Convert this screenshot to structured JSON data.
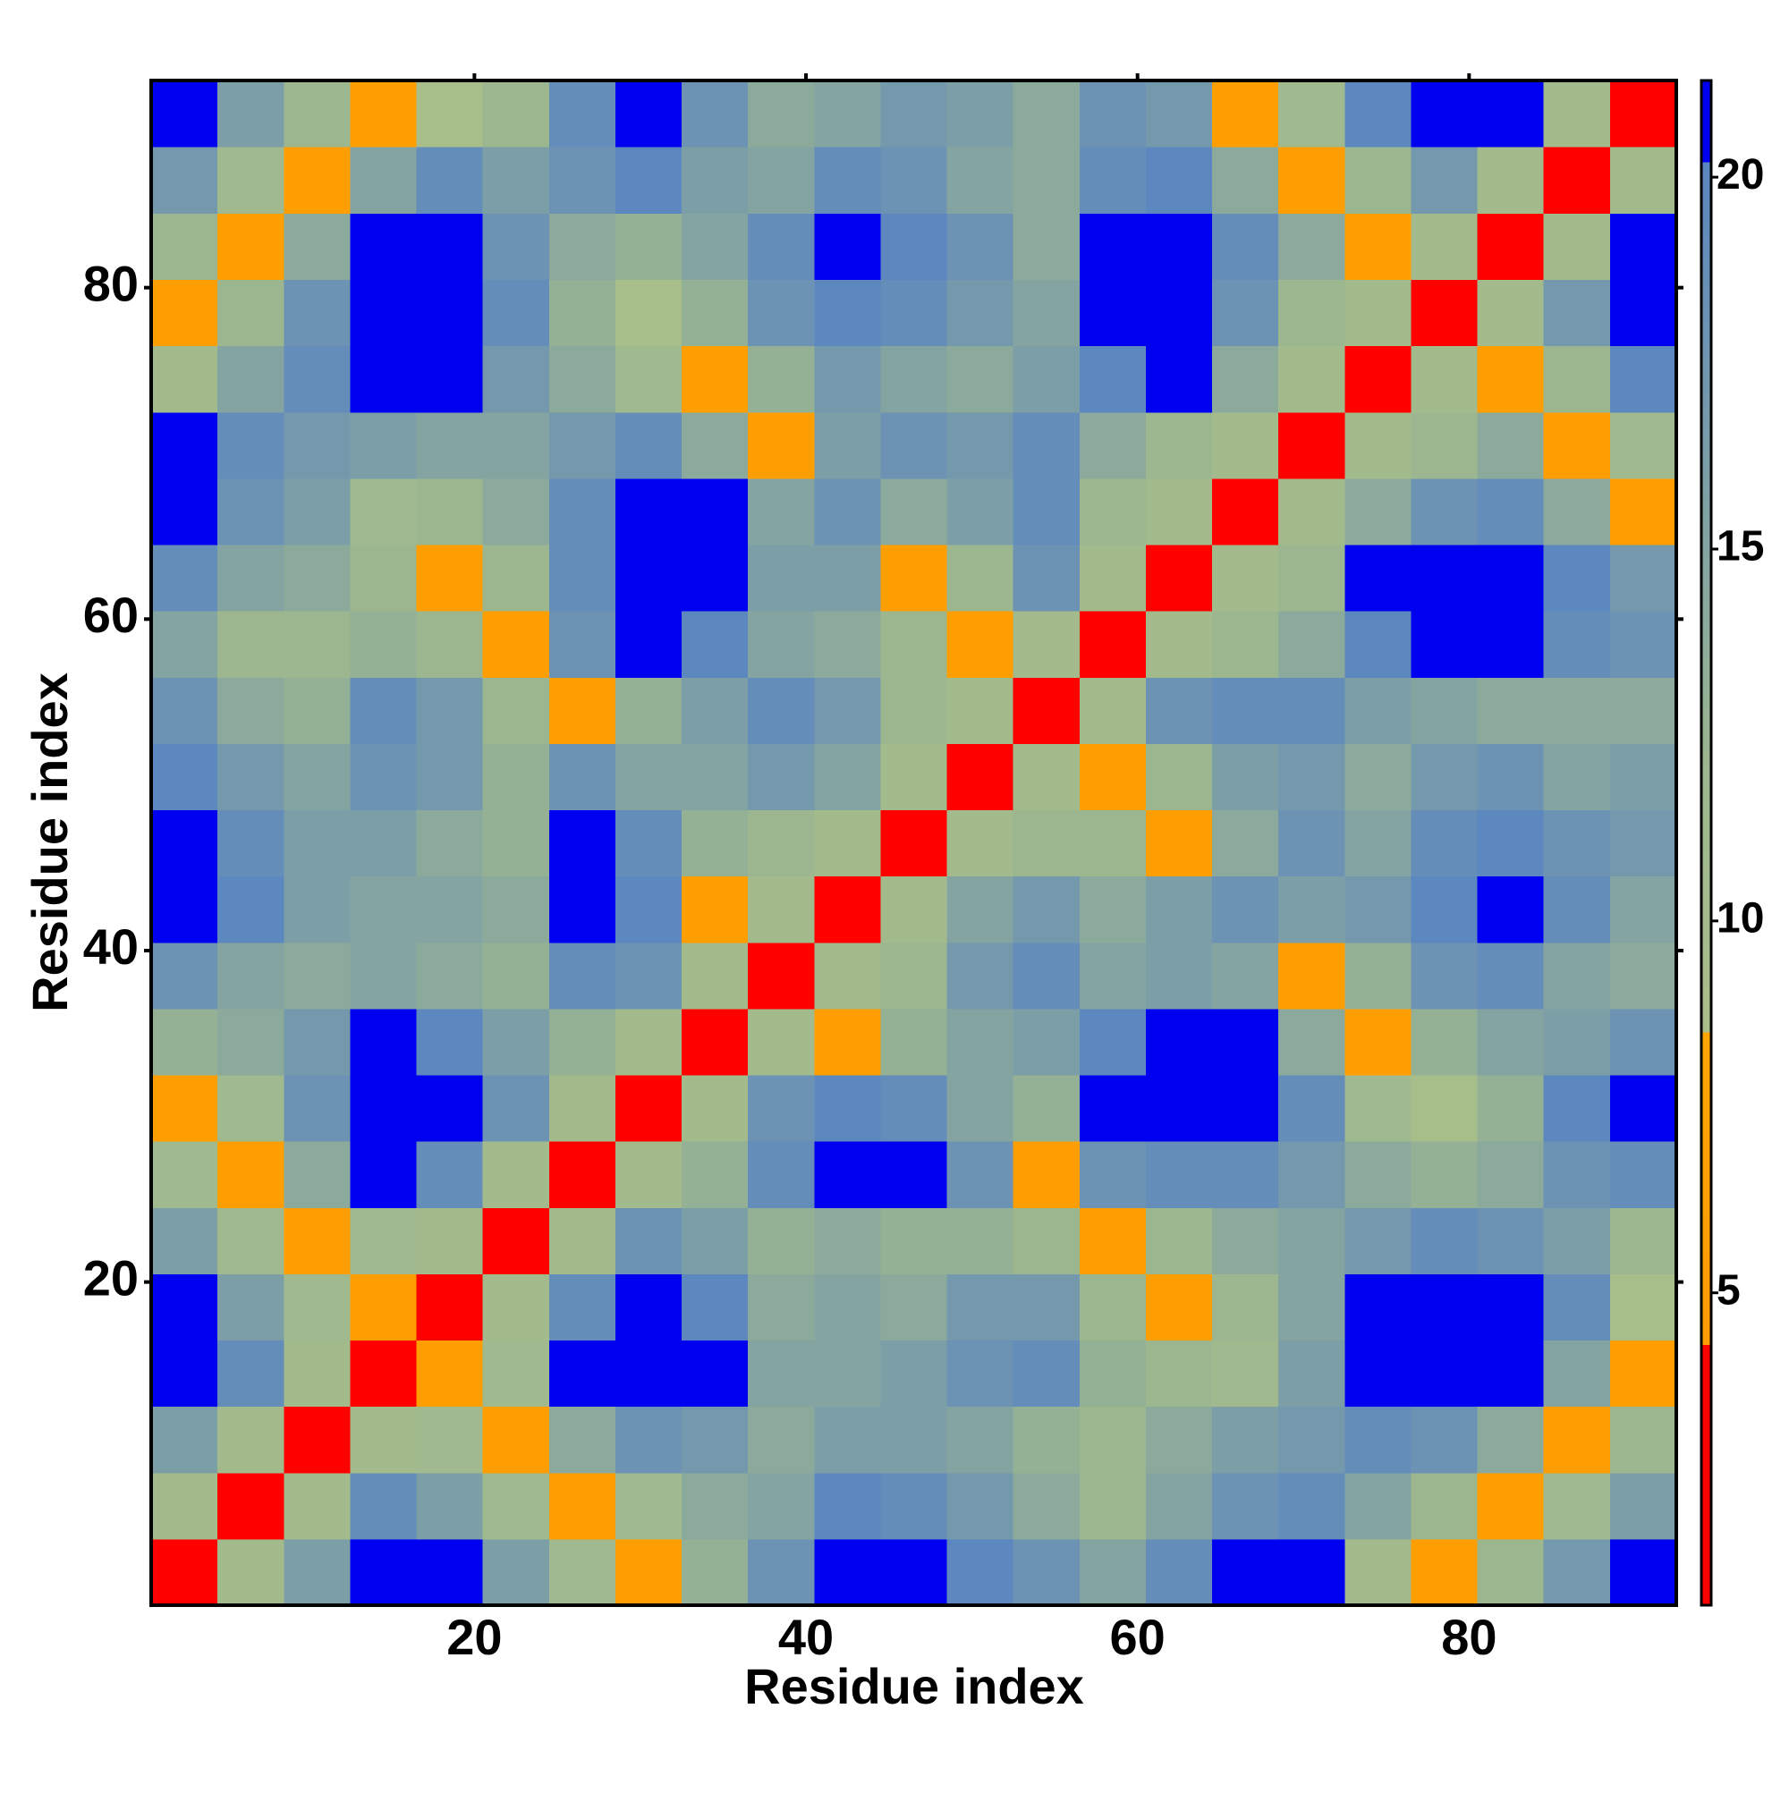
{
  "chart_data": {
    "type": "heatmap",
    "xlabel": "Residue index",
    "ylabel": "Residue index",
    "x": [
      2.5,
      6.5,
      10.5,
      14.5,
      18.5,
      22.5,
      26.5,
      30.5,
      34.5,
      38.5,
      42.5,
      46.5,
      50.5,
      54.5,
      58.5,
      62.5,
      66.5,
      70.5,
      74.5,
      78.5,
      82.5,
      86.5,
      90.5
    ],
    "y": [
      2.5,
      6.5,
      10.5,
      14.5,
      18.5,
      22.5,
      26.5,
      30.5,
      34.5,
      38.5,
      42.5,
      46.5,
      50.5,
      54.5,
      58.5,
      62.5,
      66.5,
      70.5,
      74.5,
      78.5,
      82.5,
      86.5,
      90.5
    ],
    "z": [
      [
        2,
        10,
        16,
        21,
        21,
        16,
        11,
        6,
        13,
        18,
        21,
        21,
        20,
        18,
        15,
        19,
        21,
        21,
        10,
        6,
        12,
        17,
        21
      ],
      [
        10,
        2,
        10,
        19,
        16,
        11,
        6,
        11,
        14,
        15,
        20,
        19,
        17,
        14,
        12,
        15,
        18,
        19,
        15,
        12,
        6,
        11,
        16
      ],
      [
        16,
        10,
        2,
        10,
        11,
        6,
        14,
        18,
        17,
        14,
        16,
        16,
        15,
        13,
        12,
        14,
        16,
        17,
        19,
        18,
        14,
        6,
        12
      ],
      [
        21,
        19,
        10,
        2,
        6,
        11,
        21,
        21,
        21,
        15,
        15,
        16,
        18,
        19,
        13,
        12,
        11,
        16,
        21,
        21,
        21,
        15,
        6
      ],
      [
        21,
        16,
        11,
        6,
        2,
        10,
        19,
        21,
        20,
        14,
        15,
        14,
        17,
        17,
        12,
        6,
        12,
        15,
        21,
        21,
        21,
        19,
        9
      ],
      [
        16,
        11,
        6,
        11,
        10,
        2,
        10,
        18,
        16,
        13,
        14,
        13,
        13,
        12,
        6,
        12,
        14,
        15,
        17,
        19,
        18,
        16,
        12
      ],
      [
        11,
        6,
        14,
        21,
        19,
        10,
        2,
        10,
        13,
        19,
        21,
        21,
        18,
        6,
        18,
        19,
        19,
        17,
        14,
        13,
        14,
        18,
        19
      ],
      [
        6,
        11,
        18,
        21,
        21,
        18,
        10,
        2,
        10,
        18,
        20,
        19,
        15,
        13,
        21,
        21,
        21,
        19,
        11,
        9,
        13,
        20,
        21
      ],
      [
        13,
        14,
        17,
        21,
        20,
        16,
        13,
        10,
        2,
        10,
        6,
        13,
        15,
        16,
        20,
        21,
        21,
        14,
        6,
        13,
        15,
        16,
        18
      ],
      [
        18,
        15,
        14,
        15,
        14,
        13,
        19,
        18,
        10,
        2,
        10,
        12,
        17,
        19,
        15,
        16,
        15,
        6,
        13,
        18,
        19,
        15,
        14
      ],
      [
        21,
        20,
        16,
        15,
        15,
        14,
        21,
        20,
        6,
        10,
        2,
        10,
        15,
        17,
        14,
        16,
        18,
        16,
        17,
        20,
        21,
        19,
        15
      ],
      [
        21,
        19,
        16,
        16,
        14,
        13,
        21,
        19,
        13,
        12,
        10,
        2,
        10,
        12,
        12,
        6,
        14,
        18,
        15,
        19,
        20,
        18,
        17
      ],
      [
        20,
        17,
        15,
        18,
        17,
        13,
        18,
        15,
        15,
        17,
        15,
        10,
        2,
        10,
        6,
        12,
        16,
        17,
        14,
        17,
        18,
        15,
        16
      ],
      [
        18,
        14,
        13,
        19,
        17,
        12,
        6,
        13,
        16,
        19,
        17,
        12,
        10,
        2,
        10,
        18,
        19,
        19,
        16,
        15,
        14,
        14,
        14
      ],
      [
        15,
        12,
        12,
        13,
        12,
        6,
        18,
        21,
        20,
        15,
        14,
        12,
        6,
        10,
        2,
        10,
        12,
        14,
        20,
        21,
        21,
        19,
        18
      ],
      [
        19,
        15,
        14,
        12,
        6,
        12,
        19,
        21,
        21,
        16,
        16,
        6,
        12,
        18,
        10,
        2,
        10,
        12,
        21,
        21,
        21,
        20,
        17
      ],
      [
        21,
        18,
        16,
        11,
        12,
        14,
        19,
        21,
        21,
        15,
        18,
        14,
        16,
        19,
        12,
        10,
        2,
        10,
        14,
        18,
        19,
        14,
        6
      ],
      [
        21,
        19,
        17,
        16,
        15,
        15,
        17,
        19,
        14,
        6,
        16,
        18,
        17,
        19,
        14,
        12,
        10,
        2,
        10,
        12,
        14,
        6,
        11
      ],
      [
        10,
        15,
        19,
        21,
        21,
        17,
        14,
        11,
        6,
        13,
        17,
        15,
        14,
        16,
        20,
        21,
        14,
        10,
        2,
        10,
        6,
        12,
        20
      ],
      [
        6,
        12,
        18,
        21,
        21,
        19,
        13,
        9,
        13,
        18,
        20,
        19,
        17,
        15,
        21,
        21,
        18,
        12,
        10,
        2,
        10,
        17,
        21
      ],
      [
        12,
        6,
        14,
        21,
        21,
        18,
        14,
        13,
        15,
        19,
        21,
        20,
        18,
        14,
        21,
        21,
        19,
        14,
        6,
        10,
        2,
        10,
        21
      ],
      [
        17,
        11,
        6,
        15,
        19,
        16,
        18,
        20,
        16,
        15,
        19,
        18,
        15,
        14,
        19,
        20,
        14,
        6,
        12,
        17,
        10,
        2,
        10
      ],
      [
        21,
        16,
        12,
        6,
        9,
        12,
        19,
        21,
        18,
        14,
        15,
        17,
        16,
        14,
        18,
        17,
        6,
        11,
        20,
        21,
        21,
        10,
        2
      ]
    ],
    "xlim": [
      0.5,
      92.5
    ],
    "ylim": [
      0.5,
      92.5
    ],
    "xticks": [
      20,
      40,
      60,
      80
    ],
    "yticks": [
      20,
      40,
      60,
      80
    ],
    "colorbar": {
      "lim": [
        0.8,
        21.3
      ],
      "ticks": [
        5,
        10,
        15,
        20
      ],
      "colorscale": [
        [
          0.8,
          "#ff0000"
        ],
        [
          4.3,
          "#ff0000"
        ],
        [
          4.3,
          "#ff9a00"
        ],
        [
          8.5,
          "#ffa500"
        ],
        [
          8.5,
          "#a9bf8a"
        ],
        [
          12,
          "#9cb68f"
        ],
        [
          20.2,
          "#5a86c0"
        ],
        [
          20.2,
          "#0000f0"
        ],
        [
          21.3,
          "#0000f0"
        ]
      ]
    }
  }
}
